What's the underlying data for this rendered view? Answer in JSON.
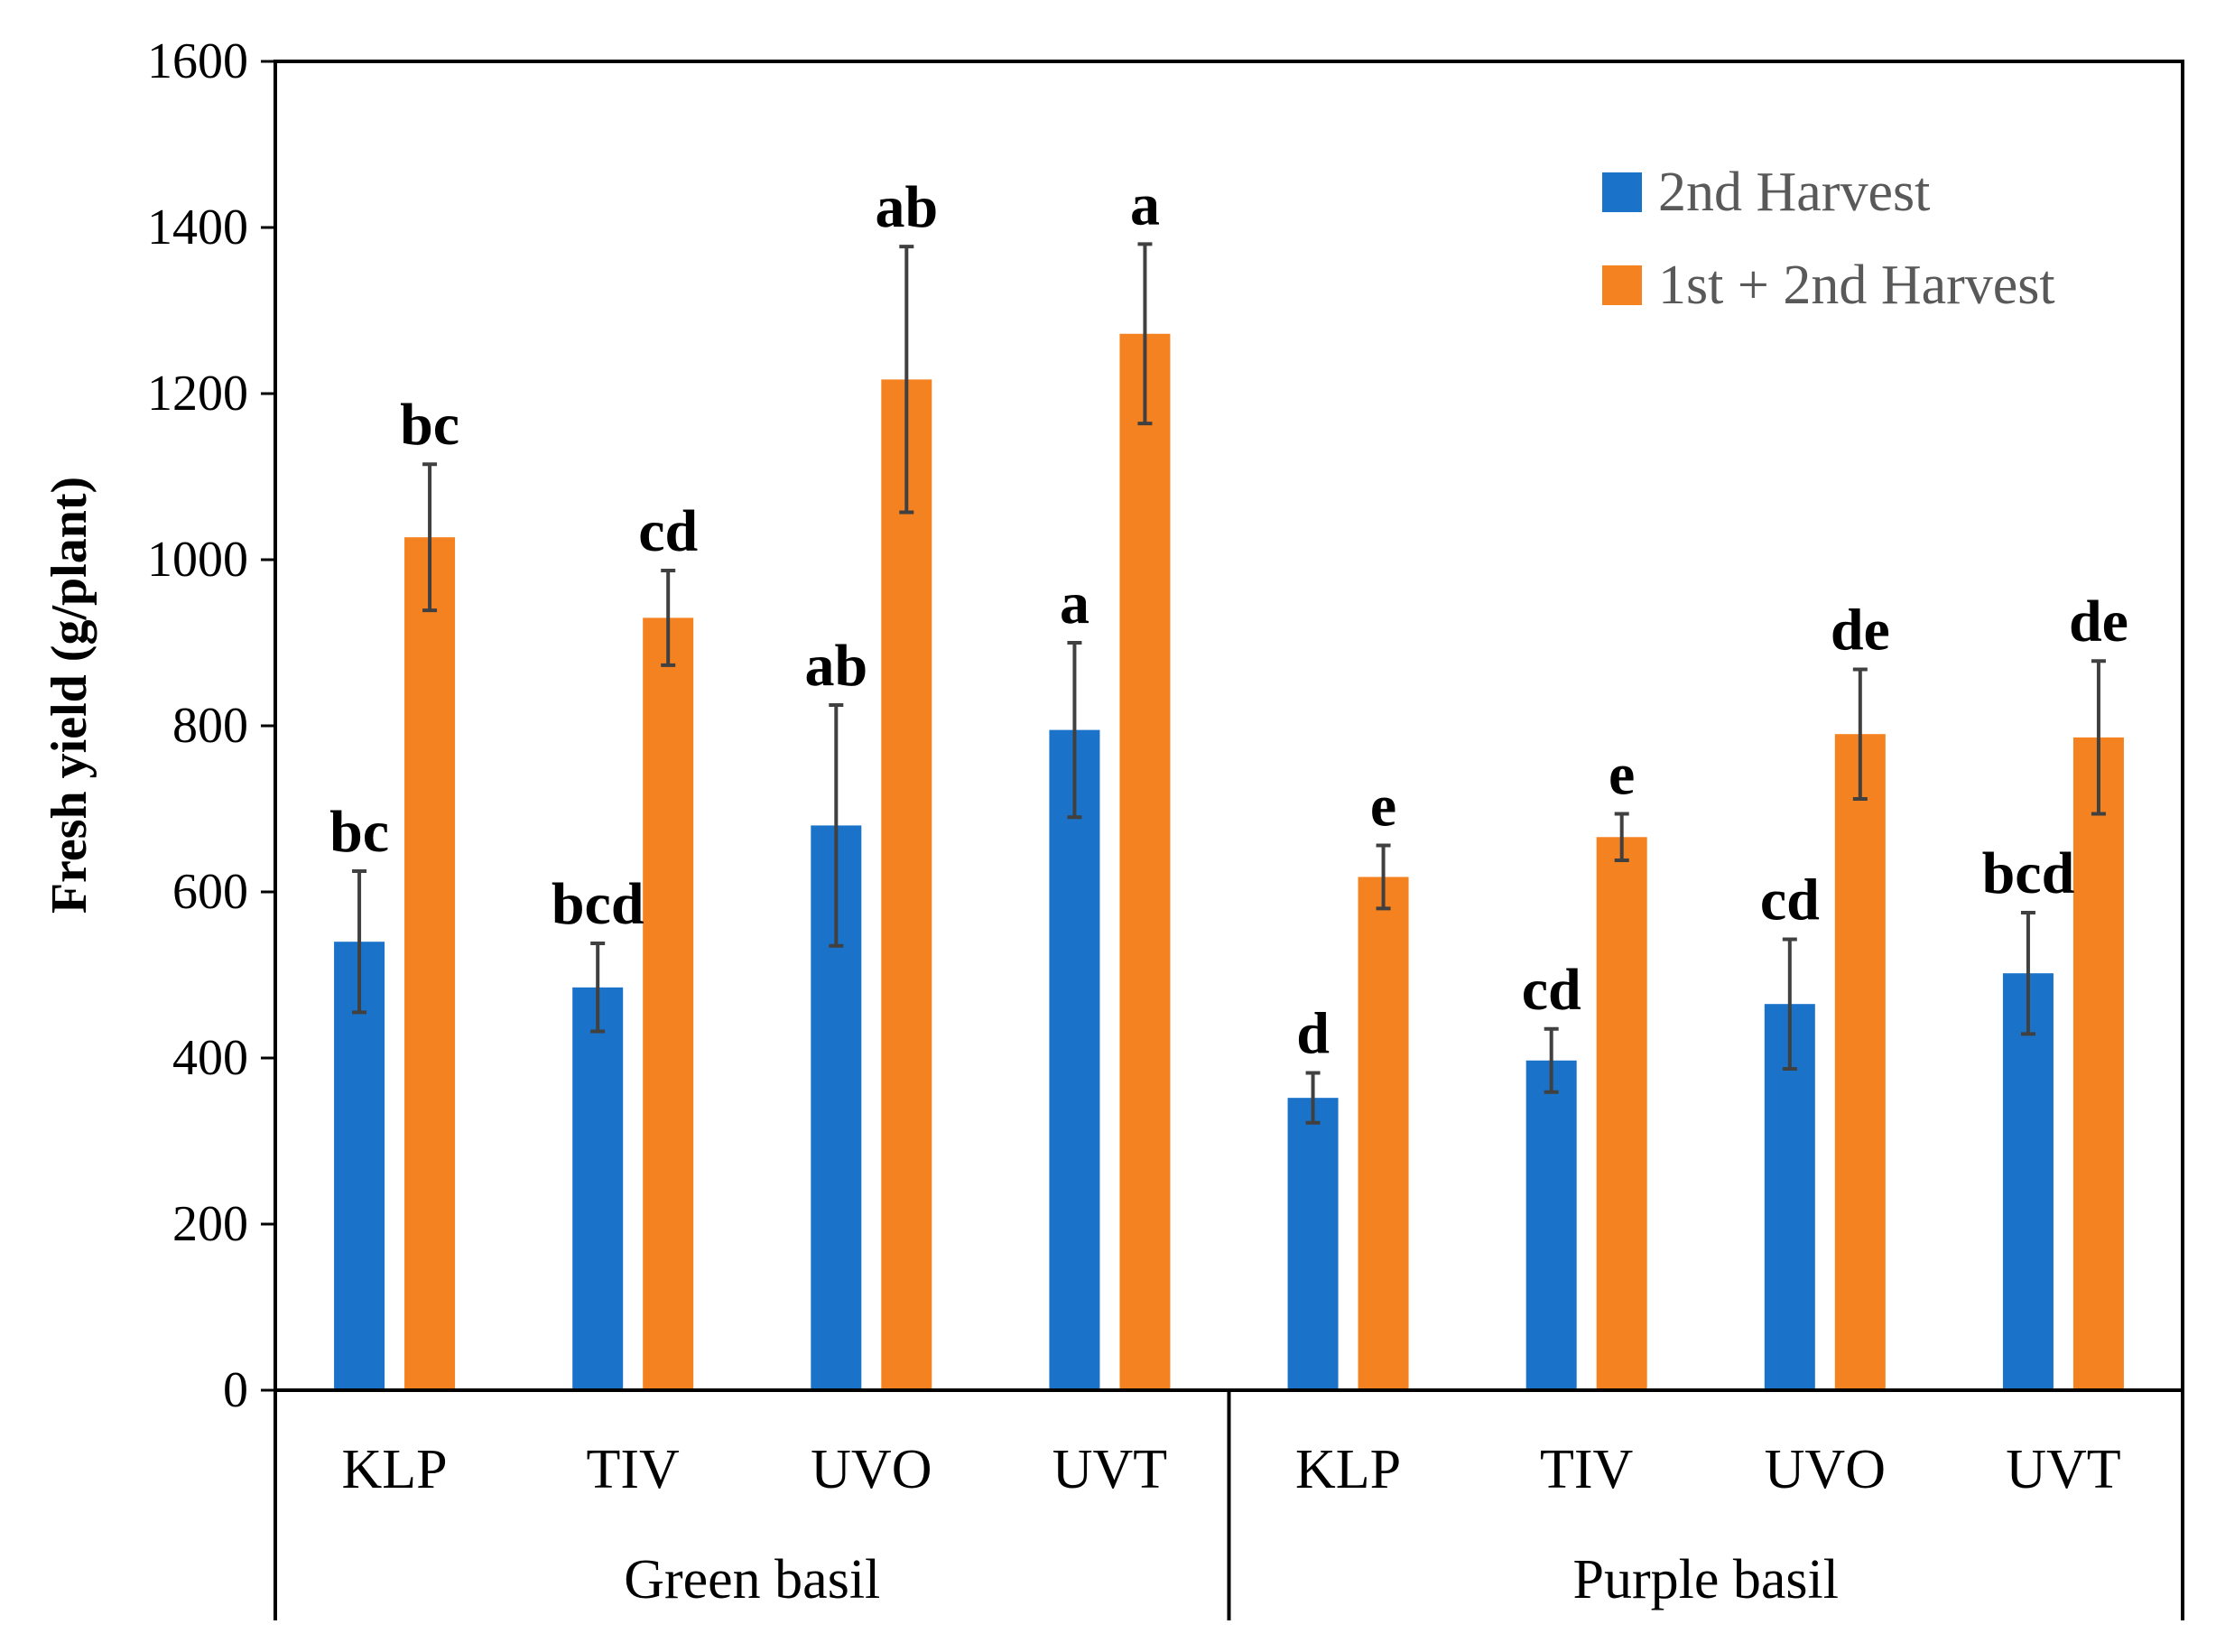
{
  "chart_data": {
    "type": "bar",
    "title": "",
    "xlabel": "",
    "ylabel": "Fresh yield (g/plant)",
    "ylim": [
      0,
      1600
    ],
    "yticks": [
      "0",
      "200",
      "400",
      "600",
      "800",
      "1000",
      "1200",
      "1400",
      "1600"
    ],
    "categories": [
      "KLP",
      "TIV",
      "UVO",
      "UVT",
      "KLP",
      "TIV",
      "UVO",
      "UVT"
    ],
    "groups": [
      {
        "label": "Green basil",
        "count": 4
      },
      {
        "label": "Purple basil",
        "count": 4
      }
    ],
    "legend_position": "top-right",
    "series": [
      {
        "name": "2nd Harvest",
        "color": "#1a73c9",
        "values": [
          540,
          485,
          680,
          795,
          352,
          397,
          465,
          502
        ],
        "errors": [
          85,
          53,
          145,
          105,
          30,
          38,
          78,
          73
        ],
        "labels": [
          "bc",
          "bcd",
          "ab",
          "a",
          "d",
          "cd",
          "cd",
          "bcd"
        ]
      },
      {
        "name": "1st + 2nd Harvest",
        "color": "#f58220",
        "values": [
          1027,
          930,
          1217,
          1272,
          618,
          666,
          790,
          786
        ],
        "errors": [
          88,
          57,
          160,
          108,
          38,
          28,
          78,
          92
        ],
        "labels": [
          "bc",
          "cd",
          "ab",
          "a",
          "e",
          "e",
          "de",
          "de"
        ]
      }
    ]
  }
}
